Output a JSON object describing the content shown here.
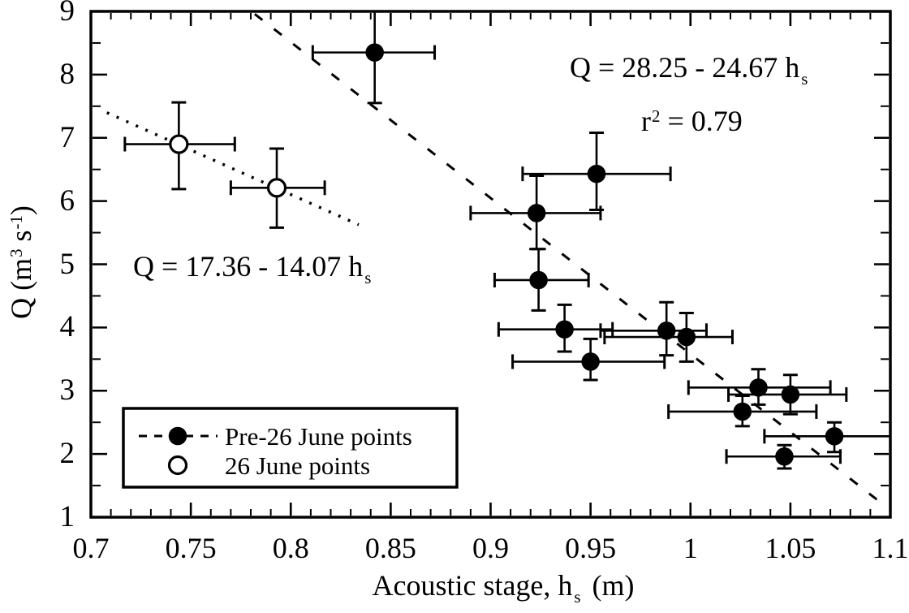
{
  "figure": {
    "background": "#ffffff",
    "ink": "#000000"
  },
  "chart_data": {
    "type": "scatter",
    "title": "",
    "xlabel": {
      "prefix": "Acoustic stage, h",
      "sub": "s",
      "suffix": "(m)"
    },
    "ylabel": {
      "prefix": "Q  (m",
      "sup1": "3",
      "mid": " s",
      "sup2": "-1",
      "suffix": ")"
    },
    "xlim": [
      0.7,
      1.1
    ],
    "ylim": [
      1,
      9
    ],
    "xticks": [
      0.7,
      0.75,
      0.8,
      0.85,
      0.9,
      0.95,
      1,
      1.05,
      1.1
    ],
    "xtick_labels": [
      "0.7",
      "0.75",
      "0.8",
      "0.85",
      "0.9",
      "0.95",
      "1",
      "1.05",
      "1.1"
    ],
    "yticks": [
      1,
      2,
      3,
      4,
      5,
      6,
      7,
      8,
      9
    ],
    "ytick_labels": [
      "1",
      "2",
      "3",
      "4",
      "5",
      "6",
      "7",
      "8",
      "9"
    ],
    "x_minor_step": 0.01,
    "y_minor_step": 0.5,
    "grid": false,
    "series": [
      {
        "name": "Pre-26 June points",
        "marker": "filled-circle",
        "line_style": "dashed",
        "fit": {
          "equation": "Q = 28.25 - 24.67 hs",
          "intercept": 28.25,
          "slope": -24.67,
          "r2": 0.79,
          "x_range": [
            0.782,
            1.098
          ]
        },
        "points": [
          {
            "x": 0.842,
            "y": 8.35,
            "xerr": [
              0.811,
              0.872
            ],
            "yerr": [
              7.55,
              9.06
            ]
          },
          {
            "x": 0.953,
            "y": 6.43,
            "xerr": [
              0.916,
              0.99
            ],
            "yerr": [
              5.86,
              7.08
            ]
          },
          {
            "x": 0.923,
            "y": 5.81,
            "xerr": [
              0.89,
              0.955
            ],
            "yerr": [
              5.24,
              6.4
            ]
          },
          {
            "x": 0.924,
            "y": 4.75,
            "xerr": [
              0.902,
              0.949
            ],
            "yerr": [
              4.27,
              5.24
            ]
          },
          {
            "x": 0.937,
            "y": 3.97,
            "xerr": [
              0.904,
              0.961
            ],
            "yerr": [
              3.62,
              4.36
            ]
          },
          {
            "x": 0.95,
            "y": 3.46,
            "xerr": [
              0.911,
              0.987
            ],
            "yerr": [
              3.17,
              3.82
            ]
          },
          {
            "x": 0.988,
            "y": 3.95,
            "xerr": [
              0.955,
              1.008
            ],
            "yerr": [
              3.56,
              4.4
            ]
          },
          {
            "x": 0.998,
            "y": 3.85,
            "xerr": [
              0.957,
              1.021
            ],
            "yerr": [
              3.46,
              4.23
            ]
          },
          {
            "x": 1.034,
            "y": 3.05,
            "xerr": [
              0.999,
              1.07
            ],
            "yerr": [
              2.78,
              3.34
            ]
          },
          {
            "x": 1.05,
            "y": 2.94,
            "xerr": [
              1.019,
              1.078
            ],
            "yerr": [
              2.63,
              3.25
            ]
          },
          {
            "x": 1.026,
            "y": 2.67,
            "xerr": [
              0.989,
              1.063
            ],
            "yerr": [
              2.44,
              2.92
            ]
          },
          {
            "x": 1.072,
            "y": 2.28,
            "xerr": [
              1.037,
              1.1
            ],
            "yerr": [
              2.03,
              2.5
            ]
          },
          {
            "x": 1.047,
            "y": 1.96,
            "xerr": [
              1.018,
              1.075
            ],
            "yerr": [
              1.77,
              2.14
            ]
          }
        ]
      },
      {
        "name": "26 June points",
        "marker": "open-circle",
        "line_style": "dotted",
        "fit": {
          "equation": "Q = 17.36 - 14.07 hs",
          "intercept": 17.36,
          "slope": -14.07,
          "x_range": [
            0.708,
            0.834
          ]
        },
        "points": [
          {
            "x": 0.744,
            "y": 6.9,
            "xerr": [
              0.717,
              0.772
            ],
            "yerr": [
              6.19,
              7.56
            ]
          },
          {
            "x": 0.793,
            "y": 6.21,
            "xerr": [
              0.77,
              0.817
            ],
            "yerr": [
              5.58,
              6.83
            ]
          }
        ]
      }
    ],
    "annotations": {
      "eq_pre26": {
        "prefix": "Q = 28.25 - 24.67 h",
        "sub": "s"
      },
      "r2": {
        "base": "r",
        "sup": "2",
        "rest": " = 0.79"
      },
      "eq_26june": {
        "prefix": "Q = 17.36 - 14.07 h",
        "sub": "s"
      }
    },
    "legend": {
      "position": "bottom-left",
      "items": [
        {
          "label": "Pre-26 June points",
          "marker": "filled-circle",
          "line": "dashed"
        },
        {
          "label": "26 June points",
          "marker": "open-circle",
          "line": "none"
        }
      ]
    }
  }
}
